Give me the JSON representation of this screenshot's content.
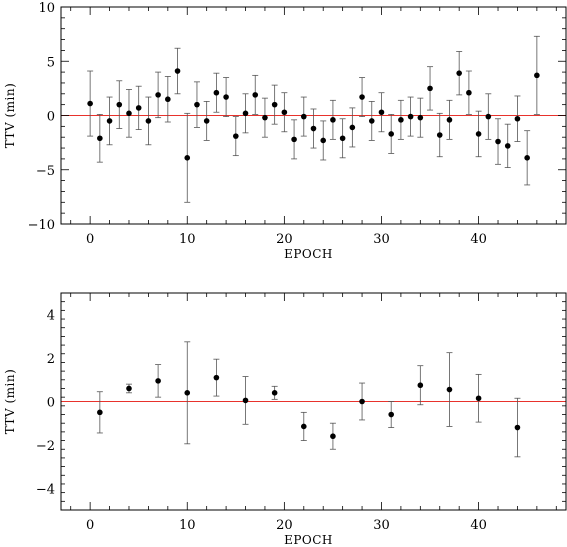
{
  "chart_data": [
    {
      "type": "scatter",
      "title": "",
      "xlabel": "EPOCH",
      "ylabel": "TTV (min)",
      "xlim": [
        -3,
        49
      ],
      "ylim": [
        -10,
        10
      ],
      "xticks": [
        0,
        10,
        20,
        30,
        40
      ],
      "yticks": [
        -10,
        -5,
        0,
        5,
        10
      ],
      "grid": false,
      "reference_line": {
        "y": 0,
        "color": "#e8322c"
      },
      "series": [
        {
          "marker": "filled-circle",
          "color": "#000000",
          "points": [
            {
              "x": 0,
              "y": 1.1,
              "err": 3.0
            },
            {
              "x": 1,
              "y": -2.1,
              "err": 2.2
            },
            {
              "x": 2,
              "y": -0.5,
              "err": 2.2
            },
            {
              "x": 3,
              "y": 1.0,
              "err": 2.2
            },
            {
              "x": 4,
              "y": 0.2,
              "err": 2.2
            },
            {
              "x": 5,
              "y": 0.7,
              "err": 2.0
            },
            {
              "x": 6,
              "y": -0.5,
              "err": 2.2
            },
            {
              "x": 7,
              "y": 1.9,
              "err": 2.1
            },
            {
              "x": 8,
              "y": 1.5,
              "err": 2.1
            },
            {
              "x": 9,
              "y": 4.1,
              "err": 2.1
            },
            {
              "x": 10,
              "y": -3.9,
              "err": 4.1
            },
            {
              "x": 11,
              "y": 1.0,
              "err": 2.1
            },
            {
              "x": 12,
              "y": -0.5,
              "err": 1.8
            },
            {
              "x": 13,
              "y": 2.1,
              "err": 1.8
            },
            {
              "x": 14,
              "y": 1.7,
              "err": 1.8
            },
            {
              "x": 15,
              "y": -1.9,
              "err": 1.8
            },
            {
              "x": 16,
              "y": 0.2,
              "err": 1.8
            },
            {
              "x": 17,
              "y": 1.9,
              "err": 1.8
            },
            {
              "x": 18,
              "y": -0.2,
              "err": 1.8
            },
            {
              "x": 19,
              "y": 1.0,
              "err": 1.8
            },
            {
              "x": 20,
              "y": 0.3,
              "err": 1.8
            },
            {
              "x": 21,
              "y": -2.2,
              "err": 1.8
            },
            {
              "x": 22,
              "y": -0.1,
              "err": 1.8
            },
            {
              "x": 23,
              "y": -1.2,
              "err": 1.8
            },
            {
              "x": 24,
              "y": -2.3,
              "err": 1.8
            },
            {
              "x": 25,
              "y": -0.4,
              "err": 1.8
            },
            {
              "x": 26,
              "y": -2.1,
              "err": 1.8
            },
            {
              "x": 27,
              "y": -1.1,
              "err": 1.8
            },
            {
              "x": 28,
              "y": 1.7,
              "err": 1.8
            },
            {
              "x": 29,
              "y": -0.5,
              "err": 1.8
            },
            {
              "x": 30,
              "y": 0.3,
              "err": 1.8
            },
            {
              "x": 31,
              "y": -1.7,
              "err": 1.8
            },
            {
              "x": 32,
              "y": -0.4,
              "err": 1.8
            },
            {
              "x": 33,
              "y": -0.1,
              "err": 1.8
            },
            {
              "x": 34,
              "y": -0.2,
              "err": 1.8
            },
            {
              "x": 35,
              "y": 2.5,
              "err": 2.0
            },
            {
              "x": 36,
              "y": -1.8,
              "err": 2.0
            },
            {
              "x": 37,
              "y": -0.4,
              "err": 1.8
            },
            {
              "x": 38,
              "y": 3.9,
              "err": 2.0
            },
            {
              "x": 39,
              "y": 2.1,
              "err": 2.0
            },
            {
              "x": 40,
              "y": -1.7,
              "err": 2.1
            },
            {
              "x": 41,
              "y": -0.1,
              "err": 2.1
            },
            {
              "x": 42,
              "y": -2.4,
              "err": 2.1
            },
            {
              "x": 43,
              "y": -2.8,
              "err": 2.0
            },
            {
              "x": 44,
              "y": -0.3,
              "err": 2.1
            },
            {
              "x": 45,
              "y": -3.9,
              "err": 2.5
            },
            {
              "x": 46,
              "y": 3.7,
              "err": 3.6
            }
          ]
        }
      ]
    },
    {
      "type": "scatter",
      "title": "",
      "xlabel": "EPOCH",
      "ylabel": "TTV (min)",
      "xlim": [
        -3,
        49
      ],
      "ylim": [
        -5,
        5
      ],
      "xticks": [
        0,
        10,
        20,
        30,
        40
      ],
      "yticks": [
        -4,
        -2,
        0,
        2,
        4
      ],
      "grid": false,
      "reference_line": {
        "y": 0,
        "color": "#e8322c"
      },
      "series": [
        {
          "marker": "filled-circle",
          "color": "#000000",
          "points": [
            {
              "x": 1,
              "y": -0.5,
              "err": 0.95
            },
            {
              "x": 4,
              "y": 0.6,
              "err": 0.2
            },
            {
              "x": 7,
              "y": 0.95,
              "err": 0.75
            },
            {
              "x": 10,
              "y": 0.4,
              "err": 2.35
            },
            {
              "x": 13,
              "y": 1.1,
              "err": 0.85
            },
            {
              "x": 16,
              "y": 0.05,
              "err": 1.1
            },
            {
              "x": 19,
              "y": 0.4,
              "err": 0.3
            },
            {
              "x": 22,
              "y": -1.15,
              "err": 0.65
            },
            {
              "x": 25,
              "y": -1.6,
              "err": 0.6
            },
            {
              "x": 28,
              "y": 0.0,
              "err": 0.85
            },
            {
              "x": 31,
              "y": -0.6,
              "err": 0.6
            },
            {
              "x": 34,
              "y": 0.75,
              "err": 0.9
            },
            {
              "x": 37,
              "y": 0.55,
              "err": 1.7
            },
            {
              "x": 40,
              "y": 0.15,
              "err": 1.1
            },
            {
              "x": 44,
              "y": -1.2,
              "err": 1.35
            }
          ]
        }
      ]
    }
  ]
}
